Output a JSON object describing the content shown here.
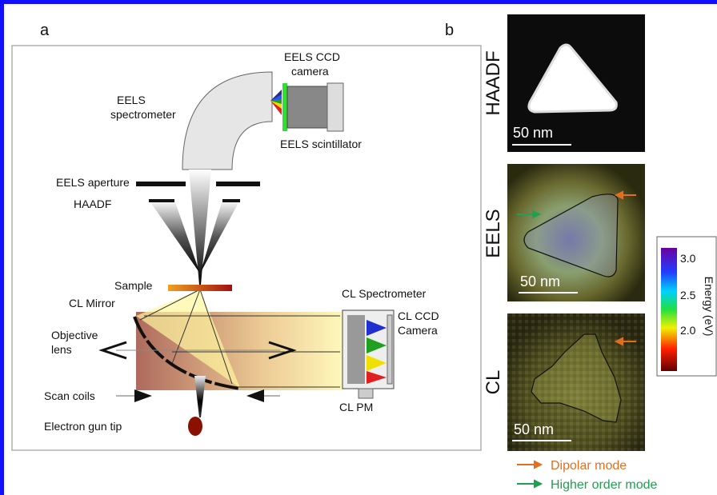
{
  "panel_a": {
    "label": "a",
    "parts": {
      "eels_ccd": [
        "EELS CCD",
        "camera"
      ],
      "eels_spectrometer": [
        "EELS",
        "spectrometer"
      ],
      "eels_scintillator": "EELS scintillator",
      "eels_aperture": "EELS aperture",
      "haadf": "HAADF",
      "sample": "Sample",
      "cl_spectrometer": "CL Spectrometer",
      "cl_ccd": [
        "CL CCD",
        "Camera"
      ],
      "cl_mirror": "CL Mirror",
      "objective_lens": [
        "Objective",
        "lens"
      ],
      "scan_coils": "Scan coils",
      "electron_gun": "Electron gun tip",
      "cl_pm": "CL PM"
    }
  },
  "panel_b": {
    "label": "b",
    "images": [
      {
        "label": "HAADF",
        "scale_bar": "50 nm"
      },
      {
        "label": "EELS",
        "scale_bar": "50 nm"
      },
      {
        "label": "CL",
        "scale_bar": "50 nm"
      }
    ],
    "colorbar": {
      "label": "Energy (eV)",
      "ticks": [
        "3.0",
        "2.5",
        "2.0"
      ]
    },
    "legend": [
      "Dipolar mode",
      "Higher order mode"
    ]
  }
}
